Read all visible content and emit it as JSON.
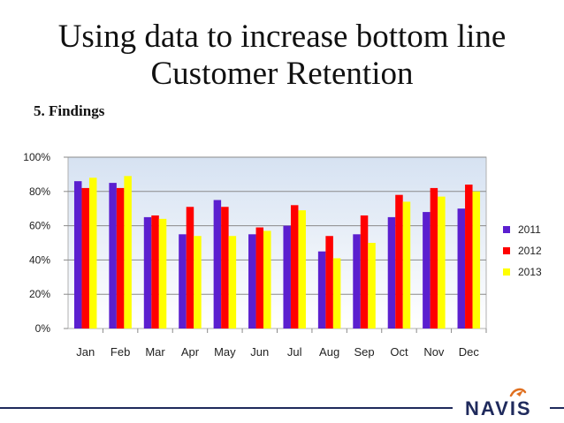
{
  "slide": {
    "title_line1": "Using data to increase bottom line",
    "title_line2": "Customer Retention",
    "section": "5. Findings",
    "logo_text": "NAVIS"
  },
  "colors": {
    "s2011": "#5b1fcf",
    "s2012": "#ff0000",
    "s2013": "#ffff00",
    "plot_top": "#d6e2f2",
    "plot_bottom": "#ffffff",
    "footer": "#1f2a5c"
  },
  "chart_data": {
    "type": "bar",
    "categories": [
      "Jan",
      "Feb",
      "Mar",
      "Apr",
      "May",
      "Jun",
      "Jul",
      "Aug",
      "Sep",
      "Oct",
      "Nov",
      "Dec"
    ],
    "series": [
      {
        "name": "2011",
        "color": "#5b1fcf",
        "values": [
          86,
          85,
          65,
          55,
          75,
          55,
          60,
          45,
          55,
          65,
          68,
          70
        ]
      },
      {
        "name": "2012",
        "color": "#ff0000",
        "values": [
          82,
          82,
          66,
          71,
          71,
          59,
          72,
          54,
          66,
          78,
          82,
          84
        ]
      },
      {
        "name": "2013",
        "color": "#ffff00",
        "values": [
          88,
          89,
          64,
          54,
          54,
          57,
          69,
          41,
          50,
          74,
          77,
          80
        ]
      }
    ],
    "y_ticks": [
      "0%",
      "20%",
      "40%",
      "60%",
      "80%",
      "100%"
    ],
    "ylim": [
      0,
      100
    ],
    "grid": true,
    "legend_position": "right"
  }
}
